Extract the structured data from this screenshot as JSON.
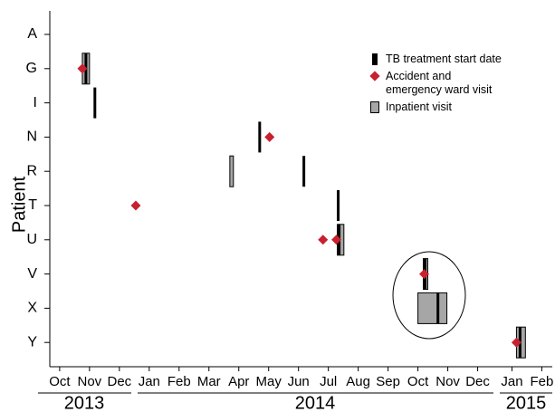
{
  "chart_data": {
    "type": "timeline",
    "y_label": "Patient",
    "categories": [
      "A",
      "G",
      "I",
      "N",
      "R",
      "T",
      "U",
      "V",
      "X",
      "Y"
    ],
    "xlim": [
      -0.33,
      16.5
    ],
    "xticks": [
      {
        "value": 0,
        "label": "Oct"
      },
      {
        "value": 1,
        "label": "Nov"
      },
      {
        "value": 2,
        "label": "Dec"
      },
      {
        "value": 3,
        "label": "Jan"
      },
      {
        "value": 4,
        "label": "Feb"
      },
      {
        "value": 5,
        "label": "Mar"
      },
      {
        "value": 6,
        "label": "Apr"
      },
      {
        "value": 7,
        "label": "May"
      },
      {
        "value": 8,
        "label": "Jun"
      },
      {
        "value": 9,
        "label": "Jul"
      },
      {
        "value": 10,
        "label": "Aug"
      },
      {
        "value": 11,
        "label": "Sep"
      },
      {
        "value": 12,
        "label": "Oct"
      },
      {
        "value": 13,
        "label": "Nov"
      },
      {
        "value": 14,
        "label": "Dec"
      },
      {
        "value": 15.15,
        "label": "Jan"
      },
      {
        "value": 16.15,
        "label": "Feb"
      }
    ],
    "years": [
      "2013",
      "2014",
      "2015"
    ],
    "series": [
      {
        "name": "TB treatment start date",
        "color": "#000000",
        "kind": "line",
        "patients": [
          "G",
          "I",
          "N",
          "R",
          "T",
          "U",
          "V",
          "X",
          "Y"
        ],
        "x": [
          0.88,
          1.18,
          6.7,
          8.18,
          9.33,
          9.36,
          12.24,
          12.67,
          15.42
        ]
      },
      {
        "name": "Accident and emergency ward visit",
        "color": "#c8202f",
        "kind": "diamond",
        "patients": [
          "G",
          "T",
          "N",
          "U",
          "U",
          "V",
          "Y"
        ],
        "x": [
          0.76,
          2.55,
          7.03,
          8.82,
          9.27,
          12.21,
          15.3
        ]
      },
      {
        "name": "Inpatient visit",
        "color": "#a6a6a6",
        "kind": "box",
        "patients": [
          "G",
          "R",
          "U",
          "V",
          "X",
          "Y"
        ],
        "start": [
          0.76,
          5.7,
          9.3,
          12.18,
          12.0,
          15.3
        ],
        "end": [
          1.0,
          5.82,
          9.52,
          12.33,
          12.97,
          15.6
        ]
      }
    ]
  }
}
